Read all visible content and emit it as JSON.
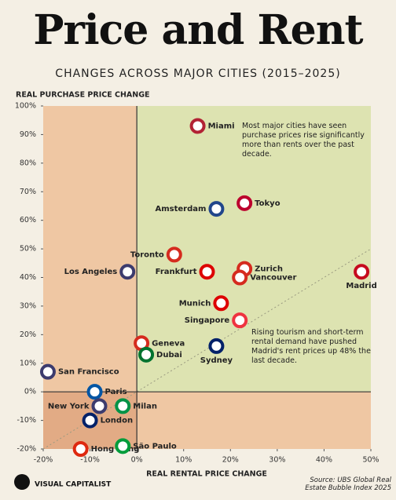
{
  "chart_data": {
    "type": "scatter",
    "title": "Price and Rent",
    "subtitle": "CHANGES ACROSS MAJOR CITIES (2015–2025)",
    "y_label": "REAL PURCHASE PRICE CHANGE",
    "x_label": "REAL RENTAL PRICE CHANGE",
    "annotations": [
      "Most major cities have seen purchase prices rise significantly more than rents over the past decade.",
      "Rising tourism and short-term rental demand have pushed Madrid's rent prices up 48% the last decade."
    ],
    "source": "Source: UBS Global Real Estate Bubble Index 2025",
    "brand": "VISUAL CAPITALIST",
    "labels": [
      "Miami",
      "Tokyo",
      "Amsterdam",
      "Toronto",
      "Los Angeles",
      "Frankfurt",
      "Zurich",
      "Vancouver",
      "Madrid",
      "Munich",
      "Singapore",
      "Geneva",
      "Sydney",
      "Dubai",
      "San Francisco",
      "Paris",
      "New York",
      "Milan",
      "London",
      "Hong Kong",
      "São Paulo"
    ],
    "x": [
      13,
      23,
      17,
      8,
      -2,
      15,
      23,
      22,
      48,
      18,
      22,
      1,
      17,
      2,
      -19,
      -9,
      -8,
      -3,
      -10,
      -12,
      -3
    ],
    "values": [
      93,
      66,
      64,
      48,
      42,
      42,
      43,
      40,
      42,
      31,
      25,
      17,
      16,
      13,
      7,
      0,
      -5,
      -5,
      -10,
      -20,
      -19
    ],
    "xlim": [
      -20,
      50
    ],
    "ylim": [
      -20,
      100
    ],
    "xticks": [
      {
        "value": -20,
        "label": "-20%"
      },
      {
        "value": -10,
        "label": "-10%"
      },
      {
        "value": 0,
        "label": "0%"
      },
      {
        "value": 10,
        "label": "10%"
      },
      {
        "value": 20,
        "label": "20%"
      },
      {
        "value": 30,
        "label": "30%"
      },
      {
        "value": 40,
        "label": "40%"
      },
      {
        "value": 50,
        "label": "50%"
      }
    ],
    "yticks": [
      {
        "value": -20,
        "label": "-20%"
      },
      {
        "value": -10,
        "label": "-10%"
      },
      {
        "value": 0,
        "label": "0%"
      },
      {
        "value": 10,
        "label": "10%"
      },
      {
        "value": 20,
        "label": "20%"
      },
      {
        "value": 30,
        "label": "30%"
      },
      {
        "value": 40,
        "label": "40%"
      },
      {
        "value": 50,
        "label": "50%"
      },
      {
        "value": 60,
        "label": "60%"
      },
      {
        "value": 70,
        "label": "70%"
      },
      {
        "value": 80,
        "label": "80%"
      },
      {
        "value": 90,
        "label": "90%"
      },
      {
        "value": 100,
        "label": "100%"
      }
    ]
  }
}
